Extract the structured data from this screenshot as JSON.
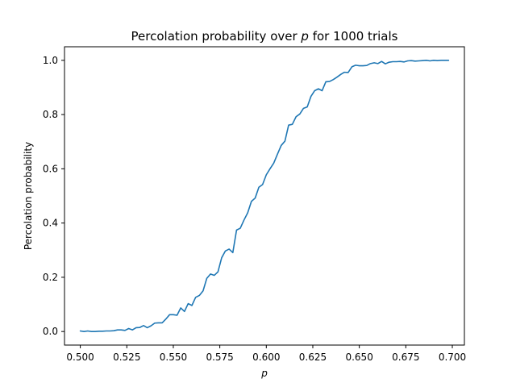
{
  "chart_data": {
    "type": "line",
    "title_prefix": "Percolation probability over ",
    "title_var": "p",
    "title_suffix": " for 1000 trials",
    "xlabel": "p",
    "ylabel": "Percolation probability",
    "xlim": [
      0.4915,
      0.7065
    ],
    "ylim": [
      -0.05,
      1.05
    ],
    "x_ticks": [
      0.5,
      0.525,
      0.55,
      0.575,
      0.6,
      0.625,
      0.65,
      0.675,
      0.7
    ],
    "x_tick_labels": [
      "0.500",
      "0.525",
      "0.550",
      "0.575",
      "0.600",
      "0.625",
      "0.650",
      "0.675",
      "0.700"
    ],
    "y_ticks": [
      0.0,
      0.2,
      0.4,
      0.6,
      0.8,
      1.0
    ],
    "y_tick_labels": [
      "0.0",
      "0.2",
      "0.4",
      "0.6",
      "0.8",
      "1.0"
    ],
    "grid": false,
    "legend": "none",
    "line_color": "#1f77b4",
    "series": [
      {
        "x": [
          0.5,
          0.502,
          0.504,
          0.506,
          0.508,
          0.51,
          0.512,
          0.514,
          0.516,
          0.518,
          0.52,
          0.522,
          0.524,
          0.526,
          0.528,
          0.53,
          0.532,
          0.534,
          0.536,
          0.538,
          0.54,
          0.542,
          0.544,
          0.546,
          0.548,
          0.55,
          0.552,
          0.554,
          0.556,
          0.558,
          0.56,
          0.562,
          0.564,
          0.566,
          0.568,
          0.57,
          0.572,
          0.574,
          0.576,
          0.578,
          0.58,
          0.582,
          0.584,
          0.586,
          0.588,
          0.59,
          0.592,
          0.594,
          0.596,
          0.598,
          0.6,
          0.602,
          0.604,
          0.606,
          0.608,
          0.61,
          0.612,
          0.614,
          0.616,
          0.618,
          0.62,
          0.622,
          0.624,
          0.626,
          0.628,
          0.63,
          0.632,
          0.634,
          0.636,
          0.638,
          0.64,
          0.642,
          0.644,
          0.646,
          0.648,
          0.65,
          0.652,
          0.654,
          0.656,
          0.658,
          0.66,
          0.662,
          0.664,
          0.666,
          0.668,
          0.67,
          0.672,
          0.674,
          0.676,
          0.678,
          0.68,
          0.682,
          0.684,
          0.686,
          0.688,
          0.69,
          0.692,
          0.694,
          0.696,
          0.698
        ],
        "values": [
          0.002,
          0.0,
          0.002,
          0.0,
          0.0,
          0.001,
          0.001,
          0.002,
          0.002,
          0.003,
          0.006,
          0.006,
          0.004,
          0.011,
          0.006,
          0.014,
          0.015,
          0.022,
          0.014,
          0.021,
          0.031,
          0.032,
          0.032,
          0.046,
          0.062,
          0.062,
          0.06,
          0.087,
          0.074,
          0.103,
          0.096,
          0.126,
          0.133,
          0.15,
          0.196,
          0.212,
          0.207,
          0.22,
          0.272,
          0.297,
          0.304,
          0.291,
          0.374,
          0.381,
          0.411,
          0.438,
          0.48,
          0.492,
          0.532,
          0.542,
          0.578,
          0.6,
          0.621,
          0.654,
          0.686,
          0.702,
          0.761,
          0.764,
          0.792,
          0.802,
          0.823,
          0.828,
          0.867,
          0.888,
          0.895,
          0.888,
          0.921,
          0.922,
          0.929,
          0.938,
          0.948,
          0.956,
          0.955,
          0.976,
          0.982,
          0.98,
          0.98,
          0.981,
          0.988,
          0.991,
          0.988,
          0.996,
          0.987,
          0.993,
          0.995,
          0.995,
          0.996,
          0.994,
          0.998,
          0.999,
          0.997,
          0.998,
          0.999,
          1.0,
          0.998,
          1.0,
          0.999,
          1.0,
          1.0,
          1.0
        ]
      }
    ]
  }
}
